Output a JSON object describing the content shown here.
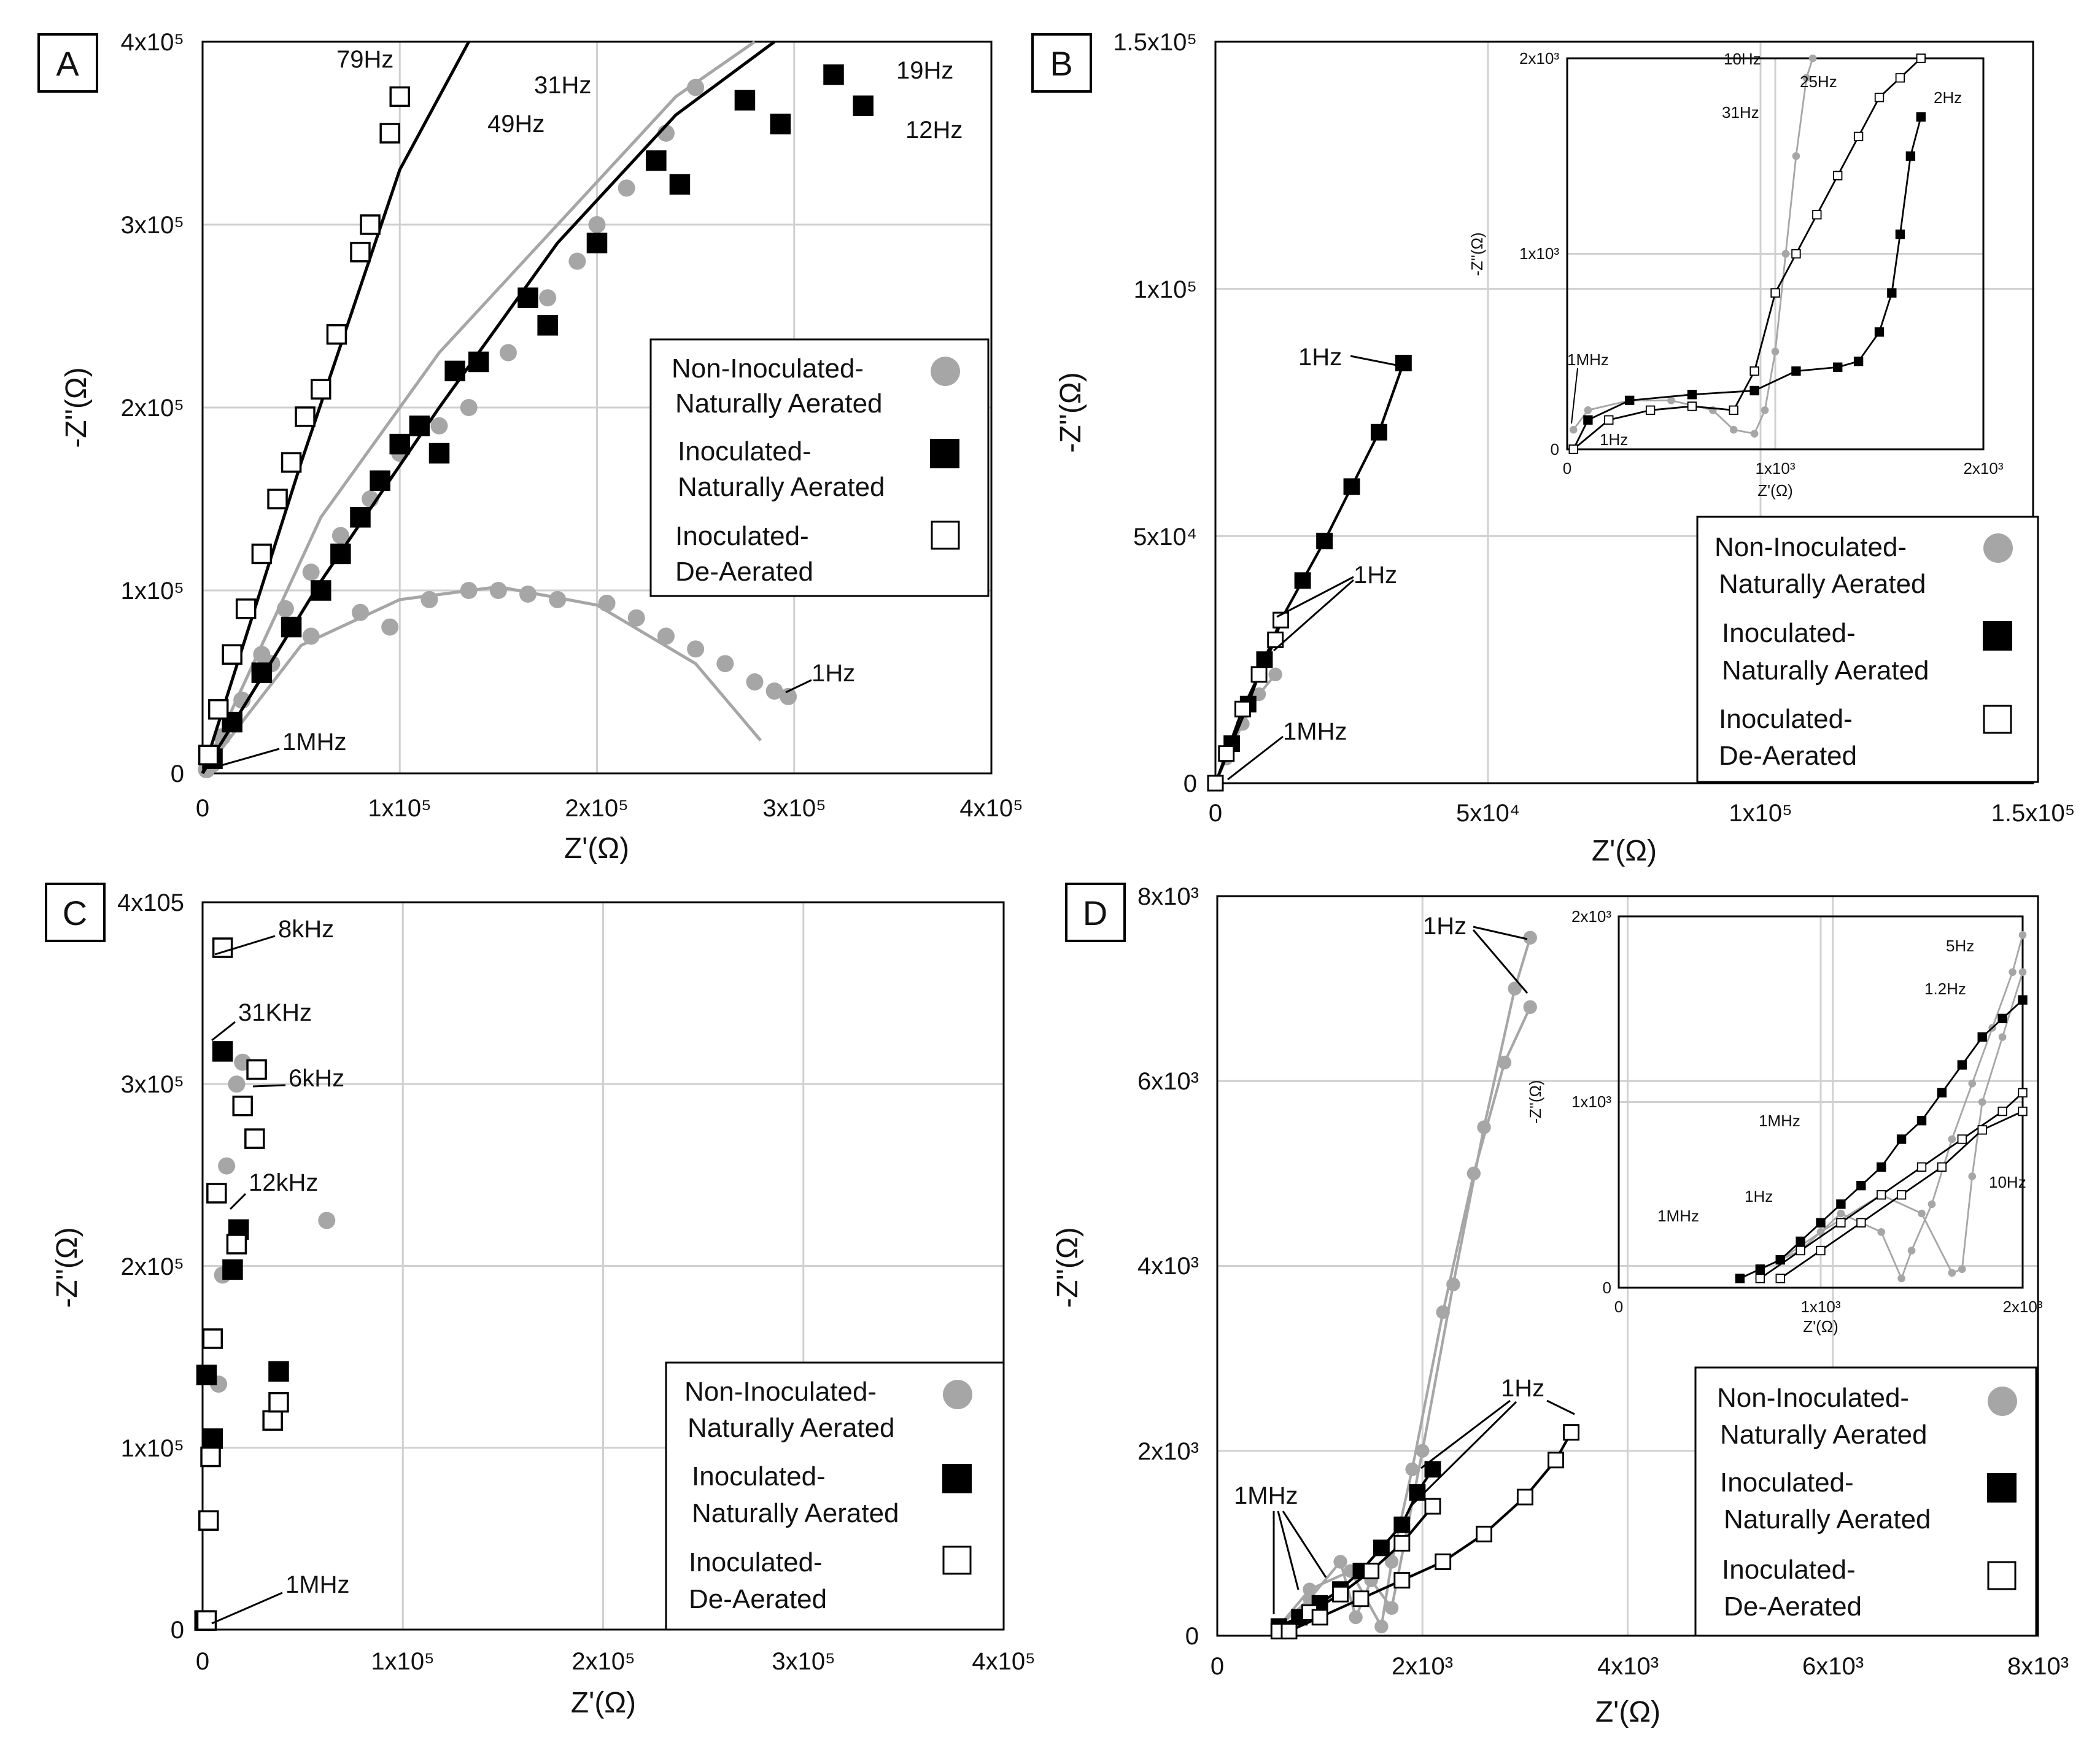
{
  "panels": {
    "A": {
      "label": "A",
      "xlabel": "Z'(Ω)",
      "ylabel": "-Z''(Ω)",
      "xticks": [
        "0",
        "1x10⁵",
        "2x10⁵",
        "3x10⁵",
        "4x10⁵"
      ],
      "yticks": [
        "0",
        "1x10⁵",
        "2x10⁵",
        "3x10⁵",
        "4x10⁵"
      ],
      "annotations": [
        "79Hz",
        "31Hz",
        "49Hz",
        "19Hz",
        "12Hz",
        "1Hz",
        "1MHz"
      ],
      "legend": [
        "Non-Inoculated-",
        "Naturally Aerated",
        "Inoculated-",
        "Naturally Aerated",
        "Inoculated-",
        "De-Aerated"
      ]
    },
    "B": {
      "label": "B",
      "xlabel": "Z'(Ω)",
      "ylabel": "-Z''(Ω)",
      "xticks": [
        "0",
        "5x10⁴",
        "1x10⁵",
        "1.5x10⁵"
      ],
      "yticks": [
        "0",
        "5x10⁴",
        "1x10⁵",
        "1.5x10⁵"
      ],
      "annotations": [
        "1Hz",
        "1Hz",
        "1MHz"
      ],
      "legend": [
        "Non-Inoculated-",
        "Naturally Aerated",
        "Inoculated-",
        "Naturally Aerated",
        "Inoculated-",
        "De-Aerated"
      ],
      "inset": {
        "xlabel": "Z'(Ω)",
        "ylabel": "-Z''(Ω)",
        "xticks": [
          "0",
          "1x10³",
          "2x10³"
        ],
        "yticks": [
          "0",
          "1x10³",
          "2x10³"
        ],
        "annotations": [
          "10Hz",
          "25Hz",
          "31Hz",
          "2Hz",
          "1MHz",
          "1Hz"
        ]
      }
    },
    "C": {
      "label": "C",
      "xlabel": "Z'(Ω)",
      "ylabel": "-Z''(Ω)",
      "xticks": [
        "0",
        "1x10⁵",
        "2x10⁵",
        "3x10⁵",
        "4x10⁵"
      ],
      "yticks": [
        "0",
        "1x10⁵",
        "2x10⁵",
        "3x10⁵",
        "4x105"
      ],
      "annotations": [
        "8kHz",
        "31KHz",
        "6kHz",
        "12kHz",
        "1MHz"
      ],
      "legend": [
        "Non-Inoculated-",
        "Naturally Aerated",
        "Inoculated-",
        "Naturally Aerated",
        "Inoculated-",
        "De-Aerated"
      ]
    },
    "D": {
      "label": "D",
      "xlabel": "Z'(Ω)",
      "ylabel": "-Z''(Ω)",
      "xticks": [
        "0",
        "2x10³",
        "4x10³",
        "6x10³",
        "8x10³"
      ],
      "yticks": [
        "0",
        "2x10³",
        "4x10³",
        "6x10³",
        "8x10³"
      ],
      "annotations": [
        "1Hz",
        "1Hz",
        "1MHz"
      ],
      "legend": [
        "Non-Inoculated-",
        "Naturally Aerated",
        "Inoculated-",
        "Naturally Aerated",
        "Inoculated-",
        "De-Aerated"
      ],
      "inset": {
        "xlabel": "Z'(Ω)",
        "ylabel": "-Z''(Ω)",
        "xticks": [
          "0",
          "1x10³",
          "2x10³"
        ],
        "yticks": [
          "0",
          "1x10³",
          "2x10³"
        ],
        "annotations": [
          "5Hz",
          "1.2Hz",
          "1MHz",
          "1Hz",
          "1MHz",
          "10Hz"
        ]
      }
    }
  },
  "colors": {
    "non_inoculated": "#a6a6a6",
    "inoculated": "#000000",
    "de_aerated_fill": "#ffffff",
    "grid": "#d0d0d0"
  },
  "chart_data": [
    {
      "id": "A",
      "type": "scatter",
      "xlabel": "Z'(Ω)",
      "ylabel": "-Z''(Ω)",
      "xlim": [
        0,
        400000
      ],
      "ylim": [
        0,
        400000
      ],
      "series": [
        {
          "name": "Non-Inoculated-Naturally Aerated (high)",
          "marker": "circle-gray",
          "x": [
            5000,
            10000,
            20000,
            30000,
            42000,
            55000,
            70000,
            85000,
            100000,
            120000,
            135000,
            155000,
            175000,
            190000,
            200000,
            215000,
            235000,
            250000
          ],
          "y": [
            5000,
            20000,
            40000,
            65000,
            90000,
            110000,
            130000,
            150000,
            175000,
            190000,
            200000,
            230000,
            260000,
            280000,
            300000,
            320000,
            350000,
            375000
          ],
          "fit_x": [
            0,
            60000,
            120000,
            180000,
            240000,
            280000
          ],
          "fit_y": [
            0,
            140000,
            230000,
            300000,
            370000,
            400000
          ]
        },
        {
          "name": "Non-Inoculated-Naturally Aerated (semicircle)",
          "marker": "circle-gray",
          "x": [
            2000,
            10000,
            20000,
            35000,
            55000,
            80000,
            95000,
            115000,
            135000,
            150000,
            165000,
            180000,
            205000,
            220000,
            235000,
            250000,
            265000,
            280000,
            290000,
            297000
          ],
          "y": [
            2000,
            20000,
            40000,
            60000,
            75000,
            88000,
            80000,
            95000,
            100000,
            100000,
            98000,
            95000,
            93000,
            85000,
            75000,
            68000,
            60000,
            50000,
            45000,
            42000
          ],
          "fit_x": [
            0,
            50000,
            100000,
            150000,
            200000,
            250000,
            283000
          ],
          "fit_y": [
            0,
            70000,
            95000,
            102000,
            92000,
            60000,
            18000
          ]
        },
        {
          "name": "Inoculated-Naturally Aerated",
          "marker": "square-black",
          "x": [
            5000,
            15000,
            30000,
            45000,
            60000,
            70000,
            80000,
            90000,
            100000,
            110000,
            120000,
            128000,
            140000,
            165000,
            175000,
            200000,
            230000,
            242000,
            275000,
            293000,
            320000,
            335000
          ],
          "y": [
            8000,
            28000,
            55000,
            80000,
            100000,
            120000,
            140000,
            160000,
            180000,
            190000,
            175000,
            220000,
            225000,
            260000,
            245000,
            290000,
            335000,
            322000,
            368000,
            355000,
            382000,
            365000
          ],
          "fit_x": [
            0,
            60000,
            120000,
            180000,
            240000,
            290000
          ],
          "fit_y": [
            0,
            105000,
            200000,
            290000,
            360000,
            400000
          ]
        },
        {
          "name": "Inoculated-De-Aerated",
          "marker": "square-white",
          "x": [
            3000,
            8000,
            15000,
            22000,
            30000,
            38000,
            45000,
            52000,
            60000,
            68000,
            80000,
            85000,
            95000,
            100000
          ],
          "y": [
            10000,
            35000,
            65000,
            90000,
            120000,
            150000,
            170000,
            195000,
            210000,
            240000,
            285000,
            300000,
            350000,
            370000
          ],
          "fit_x": [
            0,
            50000,
            100000,
            135000
          ],
          "fit_y": [
            0,
            170000,
            330000,
            400000
          ]
        }
      ]
    },
    {
      "id": "B",
      "type": "line",
      "xlabel": "Z'(Ω)",
      "ylabel": "-Z''(Ω)",
      "xlim": [
        0,
        150000
      ],
      "ylim": [
        0,
        150000
      ],
      "series": [
        {
          "name": "Non-Inoculated-Naturally Aerated",
          "x": [
            0,
            2000,
            5000,
            8000,
            11000
          ],
          "y": [
            0,
            5000,
            12000,
            18000,
            22000
          ]
        },
        {
          "name": "Inoculated-Naturally Aerated",
          "x": [
            0,
            3000,
            6000,
            9000,
            12000,
            16000,
            20000,
            25000,
            30000,
            34500
          ],
          "y": [
            0,
            8000,
            16000,
            25000,
            33000,
            41000,
            49000,
            60000,
            71000,
            85000
          ]
        },
        {
          "name": "Inoculated-De-Aerated",
          "x": [
            0,
            2000,
            5000,
            8000,
            11000,
            12000
          ],
          "y": [
            0,
            6000,
            15000,
            22000,
            29000,
            33000
          ]
        }
      ]
    },
    {
      "id": "B-inset",
      "type": "line",
      "xlabel": "Z'(Ω)",
      "ylabel": "-Z''(Ω)",
      "xlim": [
        0,
        2000
      ],
      "ylim": [
        0,
        2000
      ],
      "series": [
        {
          "name": "Non-Inoculated-Naturally Aerated",
          "x": [
            30,
            100,
            300,
            500,
            700,
            800,
            900,
            950,
            1000,
            1050,
            1100,
            1150,
            1180
          ],
          "y": [
            100,
            200,
            250,
            250,
            200,
            100,
            80,
            200,
            500,
            1000,
            1500,
            1900,
            2000
          ]
        },
        {
          "name": "Inoculated-Naturally Aerated",
          "x": [
            30,
            100,
            300,
            600,
            900,
            1100,
            1300,
            1400,
            1500,
            1560,
            1600,
            1650,
            1700
          ],
          "y": [
            0,
            150,
            250,
            280,
            300,
            400,
            420,
            450,
            600,
            800,
            1100,
            1500,
            1700
          ]
        },
        {
          "name": "Inoculated-De-Aerated",
          "x": [
            30,
            200,
            400,
            600,
            800,
            900,
            1000,
            1100,
            1200,
            1300,
            1400,
            1500,
            1600,
            1700
          ],
          "y": [
            0,
            150,
            200,
            220,
            200,
            400,
            800,
            1000,
            1200,
            1400,
            1600,
            1800,
            1900,
            2000
          ]
        }
      ]
    },
    {
      "id": "C",
      "type": "scatter",
      "xlabel": "Z'(Ω)",
      "ylabel": "-Z''(Ω)",
      "xlim": [
        0,
        400000
      ],
      "ylim": [
        0,
        400000
      ],
      "series": [
        {
          "name": "Non-Inoculated-Naturally Aerated",
          "x": [
            2000,
            8000,
            10000,
            12000,
            17000,
            20000,
            62000
          ],
          "y": [
            5000,
            135000,
            195000,
            255000,
            300000,
            312000,
            225000
          ]
        },
        {
          "name": "Inoculated-Naturally Aerated",
          "x": [
            1000,
            2000,
            5000,
            10000,
            15000,
            18000,
            38000
          ],
          "y": [
            5000,
            140000,
            105000,
            318000,
            198000,
            220000,
            142000
          ]
        },
        {
          "name": "Inoculated-De-Aerated",
          "x": [
            2000,
            3000,
            4000,
            5000,
            7000,
            10000,
            17000,
            20000,
            26000,
            27000,
            35000,
            38000
          ],
          "y": [
            5000,
            60000,
            95000,
            160000,
            240000,
            375000,
            212000,
            288000,
            270000,
            308000,
            115000,
            125000
          ]
        }
      ]
    },
    {
      "id": "D",
      "type": "line",
      "xlabel": "Z'(Ω)",
      "ylabel": "-Z''(Ω)",
      "xlim": [
        0,
        8000
      ],
      "ylim": [
        0,
        8000
      ],
      "series": [
        {
          "name": "Non-Inoculated-Naturally Aerated (1)",
          "x": [
            600,
            900,
            1200,
            1350,
            1500,
            1700,
            2000,
            2300,
            2600,
            2900,
            3050
          ],
          "y": [
            100,
            400,
            800,
            200,
            600,
            300,
            2000,
            3800,
            5500,
            7000,
            7550
          ]
        },
        {
          "name": "Non-Inoculated-Naturally Aerated (2)",
          "x": [
            600,
            900,
            1300,
            1600,
            1700,
            1900,
            2200,
            2500,
            2800,
            3050
          ],
          "y": [
            100,
            500,
            700,
            100,
            800,
            1800,
            3500,
            5000,
            6200,
            6800
          ]
        },
        {
          "name": "Inoculated-Naturally Aerated",
          "x": [
            600,
            800,
            1000,
            1200,
            1400,
            1600,
            1800,
            1950,
            2100
          ],
          "y": [
            100,
            200,
            350,
            500,
            700,
            950,
            1200,
            1550,
            1800
          ]
        },
        {
          "name": "Inoculated-De-Aerated (1)",
          "x": [
            600,
            900,
            1200,
            1500,
            1800,
            2100
          ],
          "y": [
            50,
            250,
            450,
            700,
            1000,
            1400
          ]
        },
        {
          "name": "Inoculated-De-Aerated (2)",
          "x": [
            700,
            1000,
            1400,
            1800,
            2200,
            2600,
            3000,
            3300,
            3450
          ],
          "y": [
            50,
            200,
            400,
            600,
            800,
            1100,
            1500,
            1900,
            2200
          ]
        }
      ]
    },
    {
      "id": "D-inset",
      "type": "line",
      "xlabel": "Z'(Ω)",
      "ylabel": "-Z''(Ω)",
      "xlim": [
        0,
        2000
      ],
      "ylim": [
        0,
        2000
      ],
      "series": [
        {
          "name": "Non-Inoculated-Naturally Aerated (1)",
          "x": [
            600,
            700,
            900,
            1100,
            1300,
            1400,
            1450,
            1550,
            1650,
            1750,
            1850,
            1950,
            2000
          ],
          "y": [
            50,
            100,
            200,
            400,
            300,
            50,
            200,
            450,
            800,
            1100,
            1400,
            1700,
            1900
          ]
        },
        {
          "name": "Non-Inoculated-Naturally Aerated (2)",
          "x": [
            600,
            800,
            1000,
            1300,
            1500,
            1650,
            1700,
            1750,
            1800,
            1900,
            2000
          ],
          "y": [
            50,
            150,
            300,
            500,
            400,
            80,
            100,
            600,
            1000,
            1350,
            1700
          ]
        },
        {
          "name": "Inoculated-Naturally Aerated",
          "x": [
            600,
            700,
            800,
            900,
            1000,
            1100,
            1200,
            1300,
            1400,
            1500,
            1600,
            1700,
            1800,
            1900,
            2000
          ],
          "y": [
            50,
            100,
            150,
            250,
            350,
            450,
            550,
            650,
            800,
            900,
            1050,
            1200,
            1350,
            1450,
            1550
          ]
        },
        {
          "name": "Inoculated-De-Aerated (1)",
          "x": [
            700,
            900,
            1100,
            1300,
            1500,
            1700,
            1900,
            2000
          ],
          "y": [
            50,
            200,
            350,
            500,
            650,
            800,
            950,
            1050
          ]
        },
        {
          "name": "Inoculated-De-Aerated (2)",
          "x": [
            800,
            1000,
            1200,
            1400,
            1600,
            1800,
            2000
          ],
          "y": [
            50,
            200,
            350,
            500,
            650,
            850,
            950
          ]
        }
      ]
    }
  ]
}
